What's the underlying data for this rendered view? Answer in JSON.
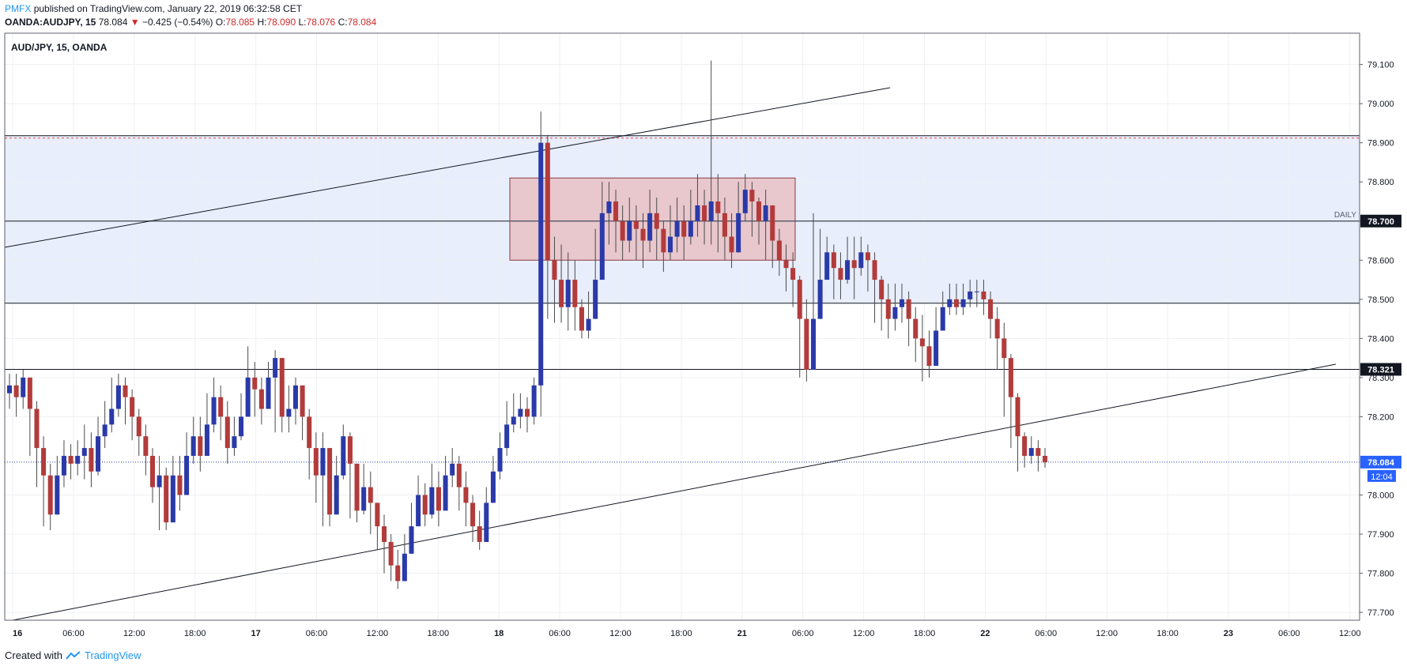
{
  "header": {
    "brand": "PMFX",
    "published": "published on TradingView.com, January 22, 2019 06:32:58 CET",
    "symbol": "OANDA:AUDJPY, 15",
    "last": "78.084",
    "change_arrow": "▼",
    "change": "−0.425 (−0.54%)",
    "o_label": "O:",
    "o_val": "78.085",
    "h_label": "H:",
    "h_val": "78.090",
    "l_label": "L:",
    "l_val": "78.076",
    "c_label": "C:",
    "c_val": "78.084"
  },
  "footer": {
    "created": "Created with",
    "brand": "TradingView",
    "logo_icon": "tradingview-logo-icon"
  },
  "chart_data": {
    "type": "candlestick",
    "title": "AUD/JPY, 15, OANDA",
    "y_range": [
      77.68,
      79.18
    ],
    "y_ticks": [
      "79.100",
      "79.000",
      "78.900",
      "78.800",
      "78.700",
      "78.600",
      "78.500",
      "78.400",
      "78.300",
      "78.200",
      "78.000",
      "77.900",
      "77.800",
      "77.700"
    ],
    "x_tick_labels": [
      "16",
      "06:00",
      "12:00",
      "18:00",
      "17",
      "06:00",
      "12:00",
      "18:00",
      "18",
      "06:00",
      "12:00",
      "18:00",
      "21",
      "06:00",
      "12:00",
      "18:00",
      "22",
      "06:00",
      "12:00",
      "18:00",
      "23",
      "06:00",
      "12:00"
    ],
    "bold_x_labels": [
      "16",
      "17",
      "18",
      "21",
      "22",
      "23"
    ],
    "zone": {
      "top": 78.918,
      "bottom": 78.49,
      "color": "#e8eefb"
    },
    "zone_dashed_line": 78.912,
    "daily_level": {
      "value": 78.7,
      "label": "DAILY",
      "price_label": "78.700"
    },
    "support_level": {
      "value": 78.321,
      "price_label": "78.321"
    },
    "consolidation_box": {
      "top": 78.81,
      "bottom": 78.6,
      "color": "#e8c2c8"
    },
    "current_price": {
      "value": 78.084,
      "label": "78.084",
      "countdown": "12:04"
    },
    "colors": {
      "up": "#2a3aa8",
      "down": "#b23b3b",
      "wick": "#4a4a4a",
      "label_blue": "#2962ff",
      "label_dark": "#131722"
    },
    "candles_close": [
      78.28,
      78.25,
      78.3,
      78.22,
      78.12,
      78.05,
      77.95,
      78.05,
      78.1,
      78.08,
      78.1,
      78.12,
      78.06,
      78.15,
      78.18,
      78.22,
      78.28,
      78.25,
      78.2,
      78.15,
      78.1,
      78.02,
      78.05,
      77.93,
      78.05,
      78.0,
      78.1,
      78.15,
      78.1,
      78.18,
      78.25,
      78.2,
      78.12,
      78.15,
      78.2,
      78.3,
      78.27,
      78.22,
      78.3,
      78.35,
      78.2,
      78.22,
      78.28,
      78.2,
      78.12,
      78.05,
      78.12,
      77.95,
      78.05,
      78.15,
      78.08,
      77.96,
      78.02,
      77.98,
      77.92,
      77.88,
      77.82,
      77.78,
      77.85,
      77.92,
      78.0,
      77.95,
      78.02,
      77.96,
      78.05,
      78.08,
      78.02,
      77.98,
      77.92,
      77.88,
      77.98,
      78.06,
      78.12,
      78.18,
      78.2,
      78.22,
      78.2,
      78.28,
      78.9,
      78.6,
      78.55,
      78.48,
      78.55,
      78.48,
      78.42,
      78.45,
      78.55,
      78.72,
      78.75,
      78.7,
      78.65,
      78.7,
      78.68,
      78.65,
      78.72,
      78.68,
      78.62,
      78.66,
      78.7,
      78.66,
      78.7,
      78.74,
      78.7,
      78.75,
      78.72,
      78.66,
      78.62,
      78.72,
      78.78,
      78.75,
      78.7,
      78.74,
      78.65,
      78.6,
      78.58,
      78.55,
      78.45,
      78.32,
      78.45,
      78.55,
      78.62,
      78.58,
      78.55,
      78.6,
      78.58,
      78.62,
      78.6,
      78.55,
      78.5,
      78.45,
      78.48,
      78.5,
      78.45,
      78.4,
      78.38,
      78.33,
      78.42,
      78.48,
      78.5,
      78.48,
      78.5,
      78.52,
      78.52,
      78.5,
      78.45,
      78.4,
      78.35,
      78.25,
      78.15,
      78.1,
      78.12,
      78.1,
      78.084
    ],
    "candles_high": [
      78.31,
      78.31,
      78.32,
      78.3,
      78.24,
      78.15,
      78.08,
      78.1,
      78.14,
      78.13,
      78.14,
      78.18,
      78.16,
      78.2,
      78.24,
      78.3,
      78.31,
      78.3,
      78.27,
      78.22,
      78.18,
      78.12,
      78.1,
      78.07,
      78.1,
      78.1,
      78.16,
      78.2,
      78.2,
      78.26,
      78.3,
      78.28,
      78.24,
      78.2,
      78.26,
      78.38,
      78.34,
      78.3,
      78.34,
      78.37,
      78.3,
      78.28,
      78.3,
      78.28,
      78.22,
      78.16,
      78.16,
      78.1,
      78.1,
      78.18,
      78.16,
      78.06,
      78.08,
      78.06,
      77.98,
      77.95,
      77.9,
      77.86,
      77.9,
      77.98,
      78.05,
      78.03,
      78.08,
      78.06,
      78.1,
      78.12,
      78.1,
      78.06,
      78.0,
      77.96,
      78.02,
      78.1,
      78.16,
      78.24,
      78.26,
      78.26,
      78.25,
      78.3,
      78.98,
      78.92,
      78.66,
      78.64,
      78.62,
      78.6,
      78.5,
      78.52,
      78.68,
      78.8,
      78.8,
      78.78,
      78.74,
      78.76,
      78.74,
      78.72,
      78.78,
      78.76,
      78.7,
      78.74,
      78.76,
      78.74,
      78.78,
      78.82,
      78.78,
      79.11,
      78.82,
      78.76,
      78.72,
      78.8,
      78.82,
      78.8,
      78.76,
      78.78,
      78.74,
      78.68,
      78.64,
      78.62,
      78.56,
      78.5,
      78.72,
      78.68,
      78.66,
      78.64,
      78.62,
      78.66,
      78.66,
      78.66,
      78.64,
      78.62,
      78.56,
      78.54,
      78.54,
      78.54,
      78.52,
      78.48,
      78.46,
      78.42,
      78.48,
      78.52,
      78.54,
      78.54,
      78.54,
      78.55,
      78.55,
      78.55,
      78.52,
      78.48,
      78.44,
      78.36,
      78.26,
      78.16,
      78.15,
      78.14,
      78.12
    ],
    "candles_low": [
      78.22,
      78.2,
      78.22,
      78.1,
      78.02,
      77.92,
      77.91,
      77.98,
      78.02,
      78.04,
      78.05,
      78.04,
      78.02,
      78.05,
      78.12,
      78.16,
      78.2,
      78.18,
      78.14,
      78.1,
      78.05,
      77.98,
      77.91,
      77.91,
      77.96,
      77.96,
      78.04,
      78.08,
      78.06,
      78.12,
      78.16,
      78.14,
      78.08,
      78.1,
      78.14,
      78.24,
      78.2,
      78.18,
      78.24,
      78.16,
      78.16,
      78.16,
      78.18,
      78.14,
      78.04,
      77.98,
      77.92,
      77.92,
      77.98,
      78.04,
      77.94,
      77.93,
      77.95,
      77.9,
      77.86,
      77.8,
      77.78,
      77.76,
      77.8,
      77.86,
      77.94,
      77.92,
      77.94,
      77.92,
      77.98,
      78.02,
      77.96,
      77.92,
      77.88,
      77.86,
      77.9,
      78.0,
      78.04,
      78.1,
      78.16,
      78.17,
      78.16,
      78.18,
      78.2,
      78.45,
      78.44,
      78.44,
      78.42,
      78.42,
      78.4,
      78.4,
      78.5,
      78.58,
      78.64,
      78.62,
      78.6,
      78.62,
      78.6,
      78.58,
      78.62,
      78.6,
      78.57,
      78.6,
      78.62,
      78.6,
      78.64,
      78.66,
      78.64,
      78.64,
      78.62,
      78.6,
      78.58,
      78.64,
      78.7,
      78.66,
      78.64,
      78.6,
      78.58,
      78.56,
      78.52,
      78.48,
      78.3,
      78.29,
      78.34,
      78.5,
      78.55,
      78.5,
      78.5,
      78.54,
      78.5,
      78.56,
      78.52,
      78.44,
      78.42,
      78.4,
      78.42,
      78.44,
      78.38,
      78.34,
      78.29,
      78.3,
      78.34,
      78.44,
      78.46,
      78.46,
      78.46,
      78.48,
      78.48,
      78.46,
      78.4,
      78.32,
      78.2,
      78.12,
      78.06,
      78.07,
      78.08,
      78.06,
      78.07
    ]
  }
}
